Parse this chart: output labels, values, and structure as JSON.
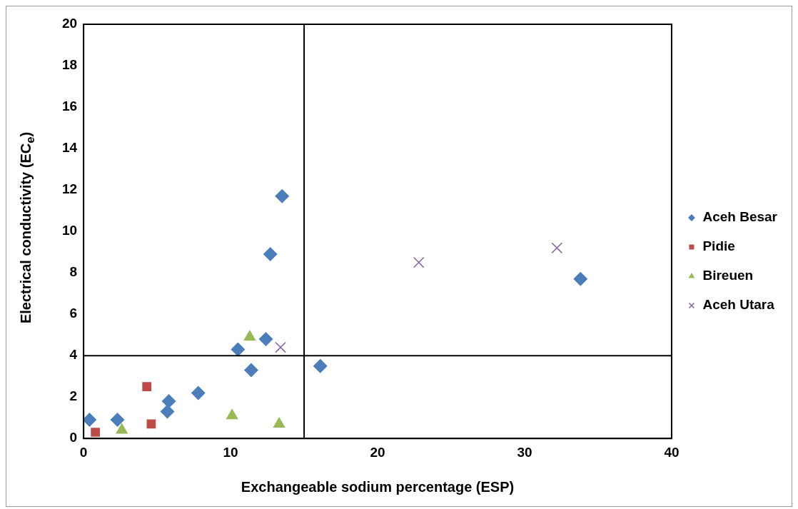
{
  "chart_data": {
    "type": "scatter",
    "xlabel": "Exchangeable sodium percentage (ESP)",
    "ylabel": "Electrical conductivity (EC$_{e}$)",
    "xlim": [
      0,
      40
    ],
    "xticks": [
      0,
      10,
      20,
      30,
      40
    ],
    "ylim": [
      0,
      20
    ],
    "yticks": [
      0,
      2,
      4,
      6,
      8,
      10,
      12,
      14,
      16,
      18,
      20
    ],
    "grid": false,
    "legend": "right",
    "ref_lines": [
      {
        "axis": "x",
        "value": 15,
        "color": "#000000"
      },
      {
        "axis": "y",
        "value": 4,
        "color": "#000000"
      }
    ],
    "series": [
      {
        "name": "Aceh Besar",
        "color": "#4a7ebb",
        "marker": "diamond",
        "x": [
          0.4,
          2.3,
          5.7,
          5.8,
          7.8,
          10.5,
          11.4,
          12.4,
          12.7,
          13.5,
          16.1,
          33.8
        ],
        "values": [
          0.9,
          0.9,
          1.3,
          1.8,
          2.2,
          4.3,
          3.3,
          4.8,
          8.9,
          11.7,
          3.5,
          7.7
        ]
      },
      {
        "name": "Pidie",
        "color": "#be4b48",
        "marker": "square",
        "x": [
          0.8,
          4.3,
          4.6
        ],
        "values": [
          0.3,
          2.5,
          0.7
        ]
      },
      {
        "name": "Bireuen",
        "color": "#98b954",
        "marker": "triangle",
        "x": [
          2.6,
          10.1,
          11.3,
          13.3
        ],
        "values": [
          0.4,
          1.1,
          4.9,
          0.7
        ]
      },
      {
        "name": "Aceh Utara",
        "color": "#8064a2",
        "marker": "cross",
        "x": [
          13.4,
          22.8,
          32.2
        ],
        "values": [
          4.4,
          8.5,
          9.2
        ]
      }
    ]
  }
}
